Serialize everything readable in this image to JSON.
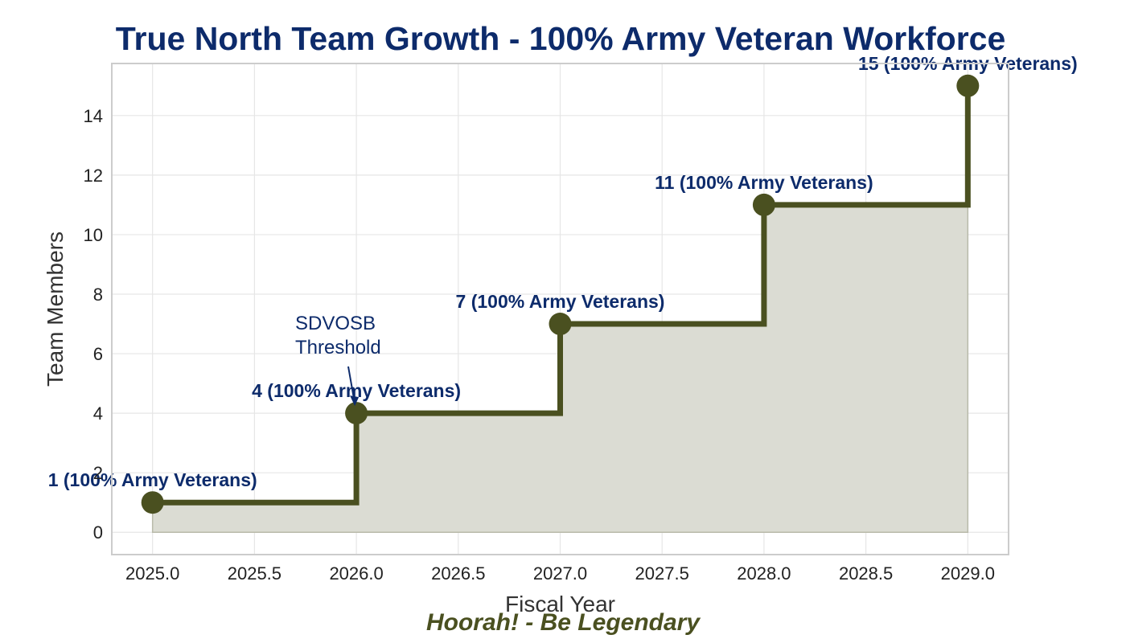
{
  "chart_data": {
    "type": "line",
    "step": "post",
    "title": "True North Team Growth - 100% Army Veteran Workforce",
    "xlabel": "Fiscal Year",
    "ylabel": "Team Members",
    "x": [
      2025,
      2026,
      2027,
      2028,
      2029
    ],
    "values": [
      1,
      4,
      7,
      11,
      15
    ],
    "point_labels": [
      "1 (100% Army Veterans)",
      "4 (100% Army Veterans)",
      "7 (100% Army Veterans)",
      "11 (100% Army Veterans)",
      "15 (100% Army Veterans)"
    ],
    "xlim": [
      2024.8,
      2029.2
    ],
    "ylim": [
      -0.75,
      15.75
    ],
    "x_ticks": [
      2025.0,
      2025.5,
      2026.0,
      2026.5,
      2027.0,
      2027.5,
      2028.0,
      2028.5,
      2029.0
    ],
    "x_tick_labels": [
      "2025.0",
      "2025.5",
      "2026.0",
      "2026.5",
      "2027.0",
      "2027.5",
      "2028.0",
      "2028.5",
      "2029.0"
    ],
    "y_ticks": [
      0,
      2,
      4,
      6,
      8,
      10,
      12,
      14
    ],
    "y_tick_labels": [
      "0",
      "2",
      "4",
      "6",
      "8",
      "10",
      "12",
      "14"
    ],
    "grid": true,
    "fill_under": true,
    "annotation": {
      "lines": [
        "SDVOSB",
        "Threshold"
      ],
      "target_x": 2026,
      "target_y": 4
    },
    "footer": "Hoorah! - Be Legendary",
    "colors": {
      "line": "#4a5020",
      "fill": "#dbdcd3",
      "text": "#0d2b6b",
      "footer": "#4a5020",
      "grid": "#e6e6e6",
      "frame": "#cccccc"
    }
  }
}
